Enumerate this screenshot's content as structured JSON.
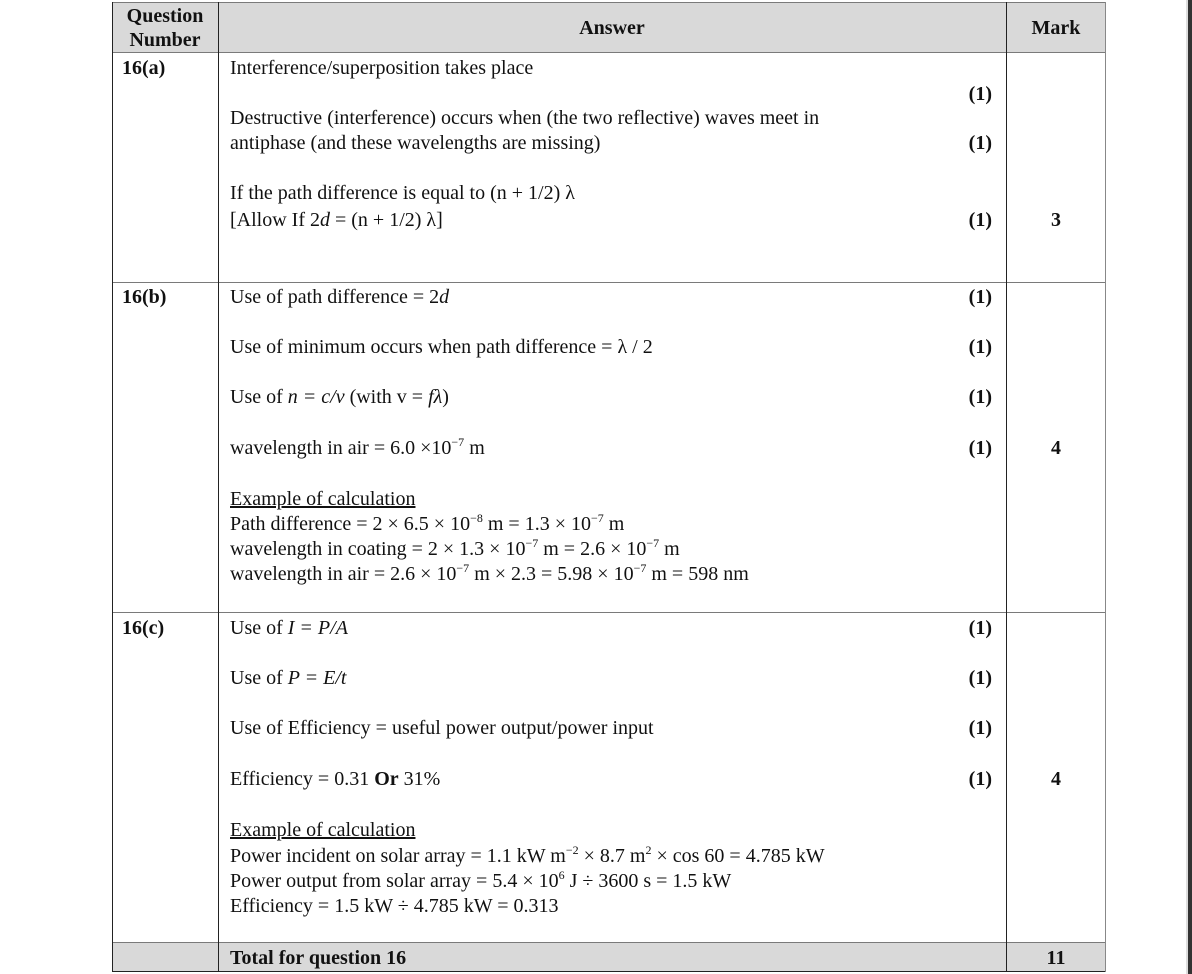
{
  "header": {
    "question_line1": "Question",
    "question_line2": "Number",
    "answer": "Answer",
    "mark": "Mark"
  },
  "q16a": {
    "number": "16(a)",
    "lines": [
      "Interference/superposition takes place",
      "Destructive (interference) occurs when (the two reflective) waves meet in",
      "antiphase (and these wavelengths are missing)",
      "If the path difference is equal to (n + 1/2) λ"
    ],
    "allow": [
      "[Allow If 2",
      "d",
      " = (n + 1/2) λ]"
    ],
    "point_marks": [
      "(1)",
      "(1)",
      "(1)"
    ],
    "total": "3"
  },
  "q16b": {
    "number": "16(b)",
    "path": [
      "Use of path difference = 2",
      "d"
    ],
    "minimum": "Use of minimum occurs when path difference = λ / 2",
    "refr": [
      "Use of ",
      "n = c/v",
      "  (with v = ",
      "fλ",
      ")"
    ],
    "wl": [
      "wavelength in air = 6.0 ×10",
      "−7",
      " m"
    ],
    "example_title": "Example of calculation",
    "calc1": [
      "Path difference = 2 × 6.5 × 10",
      "−8",
      " m = 1.3 × 10",
      "−7",
      " m"
    ],
    "calc2": [
      "wavelength in coating = 2 × 1.3 × 10",
      "−7",
      " m = 2.6 × 10",
      "−7",
      " m"
    ],
    "calc3": [
      "wavelength in air = 2.6 × 10",
      "−7",
      " m × 2.3 = 5.98 × 10",
      "−7",
      " m = 598 nm"
    ],
    "point_marks": [
      "(1)",
      "(1)",
      "(1)",
      "(1)"
    ],
    "total": "4"
  },
  "q16c": {
    "number": "16(c)",
    "use1": [
      "Use of ",
      "I = P/A"
    ],
    "use2": [
      "Use of ",
      "P = E/t"
    ],
    "use3": "Use of Efficiency = useful power output/power input",
    "eff": [
      "Efficiency = 0.31 ",
      "Or",
      " 31%"
    ],
    "example_title": "Example of calculation",
    "calc1": [
      "Power incident on solar array = 1.1 kW m",
      "−2",
      " × 8.7 m",
      "2",
      " × cos 60 = 4.785 kW"
    ],
    "calc2": [
      "Power output from solar array = 5.4 × 10",
      "6",
      " J ÷ 3600 s  = 1.5 kW"
    ],
    "calc3": "Efficiency = 1.5 kW ÷ 4.785 kW = 0.313",
    "point_marks": [
      "(1)",
      "(1)",
      "(1)",
      "(1)"
    ],
    "total": "4"
  },
  "footer": {
    "label": "Total for question 16",
    "total": "11"
  }
}
